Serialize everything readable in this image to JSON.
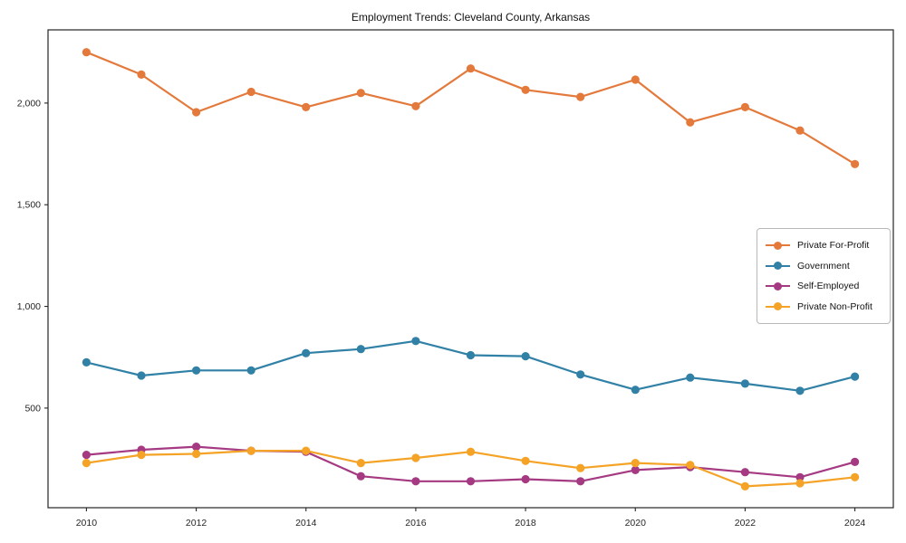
{
  "chart_data": {
    "type": "line",
    "title": "Employment Trends: Cleveland County, Arkansas",
    "x": [
      2010,
      2011,
      2012,
      2013,
      2014,
      2015,
      2016,
      2017,
      2018,
      2019,
      2020,
      2021,
      2022,
      2023,
      2024
    ],
    "series": [
      {
        "name": "Private For-Profit",
        "color": "#E4793C",
        "values": [
          2250,
          2140,
          1955,
          2055,
          1980,
          2050,
          1985,
          2170,
          2065,
          2030,
          2115,
          1905,
          1980,
          1865,
          1700
        ]
      },
      {
        "name": "Government",
        "color": "#3181A7",
        "values": [
          725,
          660,
          685,
          685,
          770,
          790,
          830,
          760,
          755,
          665,
          590,
          650,
          620,
          585,
          655
        ]
      },
      {
        "name": "Self-Employed",
        "color": "#A53A82",
        "values": [
          270,
          295,
          310,
          290,
          285,
          165,
          140,
          140,
          150,
          140,
          195,
          210,
          185,
          160,
          235
        ]
      },
      {
        "name": "Private Non-Profit",
        "color": "#F4A327",
        "values": [
          230,
          270,
          275,
          290,
          290,
          230,
          255,
          285,
          240,
          205,
          230,
          220,
          115,
          130,
          160
        ]
      }
    ],
    "xlim": [
      2009.3,
      2024.7
    ],
    "ylim": [
      10,
      2360
    ],
    "x_ticks": [
      2010,
      2012,
      2014,
      2016,
      2018,
      2020,
      2022,
      2024
    ],
    "y_ticks": [
      {
        "value": 500,
        "label": "500"
      },
      {
        "value": 1000,
        "label": "1,000"
      },
      {
        "value": 1500,
        "label": "1,500"
      },
      {
        "value": 2000,
        "label": "2,000"
      }
    ],
    "grid": false,
    "legend_position": "center-right",
    "axis_color": "#262626",
    "text_color": "#262626"
  }
}
